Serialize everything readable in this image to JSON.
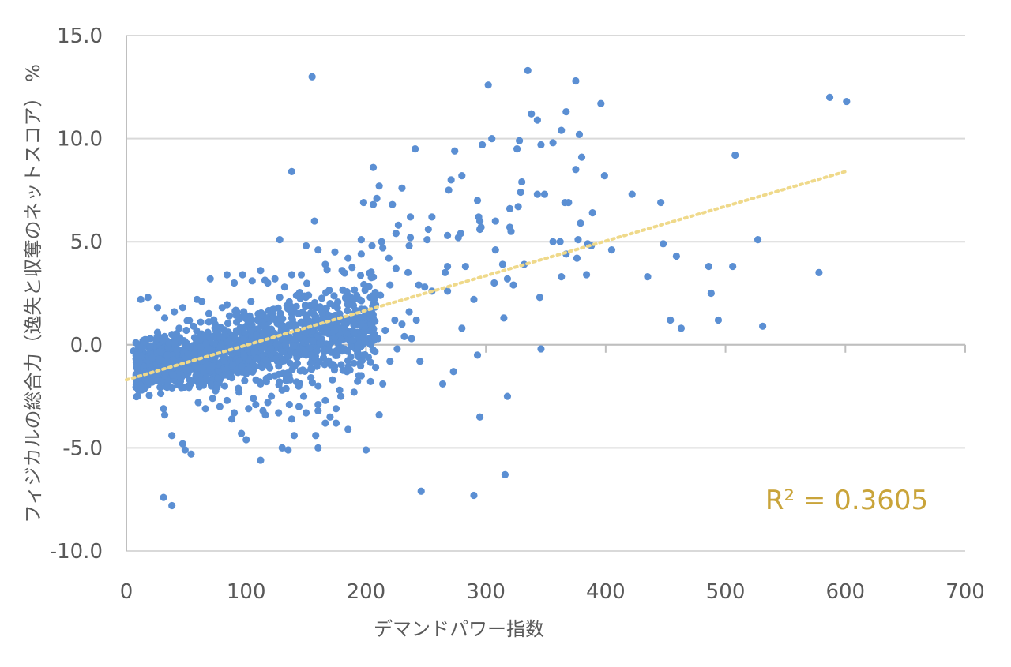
{
  "chart_data": {
    "type": "scatter",
    "xlabel": "デマンドパワー指数",
    "ylabel": "フィジカルの総合力（逸失と収奪のネットスコア） %",
    "xlim": [
      0,
      700
    ],
    "ylim": [
      -10,
      15
    ],
    "x_ticks": [
      "0",
      "100",
      "200",
      "300",
      "400",
      "500",
      "600",
      "700"
    ],
    "y_ticks": [
      "15.0",
      "10.0",
      "5.0",
      "0.0",
      "-5.0",
      "-10.0"
    ],
    "grid": "horizontal",
    "point_color": "#5B8FD3",
    "trendline": {
      "style": "dotted",
      "color": "#EFD98A",
      "x": [
        0,
        600
      ],
      "y": [
        -1.7,
        8.4
      ],
      "r2_label": "R² = 0.3605",
      "r2_color": "#C9A43A"
    },
    "series": [
      {
        "points": [
          [
            155,
            13.0
          ],
          [
            335,
            13.3
          ],
          [
            375,
            12.8
          ],
          [
            302,
            12.6
          ],
          [
            587,
            12.0
          ],
          [
            601,
            11.8
          ],
          [
            396,
            11.7
          ],
          [
            338,
            11.2
          ],
          [
            367,
            11.3
          ],
          [
            343,
            10.9
          ],
          [
            363,
            10.4
          ],
          [
            378,
            10.2
          ],
          [
            305,
            10.0
          ],
          [
            328,
            9.9
          ],
          [
            297,
            9.7
          ],
          [
            346,
            9.7
          ],
          [
            356,
            9.8
          ],
          [
            326,
            9.5
          ],
          [
            241,
            9.5
          ],
          [
            274,
            9.4
          ],
          [
            380,
            9.1
          ],
          [
            508,
            9.2
          ],
          [
            375,
            8.5
          ],
          [
            206,
            8.6
          ],
          [
            138,
            8.4
          ],
          [
            399,
            8.2
          ],
          [
            280,
            8.2
          ],
          [
            271,
            8.0
          ],
          [
            330,
            7.9
          ],
          [
            211,
            7.7
          ],
          [
            230,
            7.6
          ],
          [
            269,
            7.5
          ],
          [
            329,
            7.4
          ],
          [
            343,
            7.3
          ],
          [
            349,
            7.3
          ],
          [
            422,
            7.3
          ],
          [
            209,
            7.1
          ],
          [
            293,
            7.0
          ],
          [
            366,
            6.9
          ],
          [
            369,
            6.9
          ],
          [
            446,
            6.9
          ],
          [
            198,
            6.9
          ],
          [
            206,
            6.8
          ],
          [
            222,
            6.8
          ],
          [
            327,
            6.7
          ],
          [
            320,
            6.6
          ],
          [
            389,
            6.4
          ],
          [
            237,
            6.2
          ],
          [
            255,
            6.2
          ],
          [
            294,
            6.2
          ],
          [
            295,
            6.0
          ],
          [
            308,
            6.0
          ],
          [
            157,
            6.0
          ],
          [
            379,
            5.9
          ],
          [
            227,
            5.8
          ],
          [
            320,
            5.7
          ],
          [
            296,
            5.7
          ],
          [
            252,
            5.6
          ],
          [
            295,
            5.6
          ],
          [
            321,
            5.5
          ],
          [
            279,
            5.4
          ],
          [
            225,
            5.4
          ],
          [
            268,
            5.3
          ],
          [
            277,
            5.2
          ],
          [
            237,
            5.2
          ],
          [
            128,
            5.1
          ],
          [
            251,
            5.1
          ],
          [
            196,
            5.1
          ],
          [
            213,
            5.0
          ],
          [
            356,
            5.0
          ],
          [
            362,
            5.0
          ],
          [
            385,
            4.9
          ],
          [
            377,
            5.1
          ],
          [
            527,
            5.1
          ],
          [
            448,
            4.9
          ],
          [
            236,
            4.8
          ],
          [
            388,
            4.8
          ],
          [
            405,
            4.6
          ],
          [
            308,
            4.6
          ],
          [
            459,
            4.3
          ],
          [
            367,
            4.4
          ],
          [
            376,
            4.2
          ],
          [
            486,
            3.8
          ],
          [
            506,
            3.8
          ],
          [
            332,
            3.9
          ],
          [
            314,
            3.9
          ],
          [
            268,
            3.8
          ],
          [
            283,
            3.8
          ],
          [
            266,
            3.5
          ],
          [
            384,
            3.4
          ],
          [
            435,
            3.3
          ],
          [
            363,
            3.3
          ],
          [
            578,
            3.5
          ],
          [
            318,
            3.2
          ],
          [
            323,
            2.9
          ],
          [
            307,
            3.0
          ],
          [
            268,
            2.6
          ],
          [
            488,
            2.5
          ],
          [
            345,
            2.3
          ],
          [
            290,
            2.2
          ],
          [
            454,
            1.2
          ],
          [
            315,
            1.3
          ],
          [
            494,
            1.2
          ],
          [
            463,
            0.8
          ],
          [
            531,
            0.9
          ],
          [
            280,
            0.8
          ],
          [
            346,
            -0.2
          ],
          [
            293,
            -0.5
          ],
          [
            245,
            -0.8
          ],
          [
            273,
            -1.3
          ],
          [
            264,
            -1.9
          ],
          [
            318,
            -2.5
          ],
          [
            295,
            -3.5
          ],
          [
            211,
            -3.4
          ],
          [
            200,
            -5.1
          ],
          [
            160,
            -5.0
          ],
          [
            112,
            -5.6
          ],
          [
            130,
            -5.0
          ],
          [
            54,
            -5.3
          ],
          [
            38,
            -4.4
          ],
          [
            47,
            -4.8
          ],
          [
            49,
            -5.1
          ],
          [
            31,
            -3.1
          ],
          [
            32,
            -3.4
          ],
          [
            31,
            -7.4
          ],
          [
            38,
            -7.8
          ],
          [
            246,
            -7.1
          ],
          [
            290,
            -7.3
          ],
          [
            316,
            -6.3
          ],
          [
            185,
            -4.1
          ],
          [
            175,
            -3.8
          ],
          [
            166,
            -3.8
          ],
          [
            140,
            -4.4
          ],
          [
            158,
            -4.4
          ],
          [
            135,
            -5.1
          ],
          [
            96,
            -4.3
          ],
          [
            100,
            -4.6
          ],
          [
            88,
            -3.6
          ],
          [
            116,
            -3.4
          ],
          [
            127,
            -3.3
          ],
          [
            150,
            -3.3
          ],
          [
            160,
            -3.2
          ],
          [
            175,
            -3.1
          ],
          [
            179,
            -2.5
          ],
          [
            190,
            -2.3
          ],
          [
            12,
            2.2
          ],
          [
            18,
            2.3
          ],
          [
            26,
            1.8
          ],
          [
            32,
            1.3
          ],
          [
            40,
            1.6
          ],
          [
            47,
            1.8
          ],
          [
            59,
            2.2
          ],
          [
            63,
            2.1
          ],
          [
            70,
            3.2
          ],
          [
            84,
            3.4
          ],
          [
            90,
            3.0
          ],
          [
            97,
            3.4
          ],
          [
            105,
            3.1
          ],
          [
            112,
            3.6
          ],
          [
            118,
            3.0
          ],
          [
            124,
            3.2
          ],
          [
            132,
            2.8
          ],
          [
            138,
            3.4
          ],
          [
            146,
            3.4
          ],
          [
            150,
            4.8
          ],
          [
            160,
            4.6
          ],
          [
            166,
            3.9
          ],
          [
            174,
            4.5
          ],
          [
            180,
            3.6
          ],
          [
            185,
            4.2
          ],
          [
            196,
            4.4
          ],
          [
            205,
            4.8
          ],
          [
            214,
            4.7
          ],
          [
            219,
            4.2
          ],
          [
            225,
            3.7
          ],
          [
            235,
            3.5
          ],
          [
            244,
            2.9
          ],
          [
            249,
            2.8
          ],
          [
            255,
            2.6
          ],
          [
            220,
            2.9
          ],
          [
            212,
            2.4
          ],
          [
            206,
            2.0
          ],
          [
            199,
            1.4
          ],
          [
            192,
            1.0
          ],
          [
            186,
            1.2
          ],
          [
            178,
            1.5
          ],
          [
            170,
            2.0
          ],
          [
            164,
            1.3
          ],
          [
            158,
            1.8
          ],
          [
            152,
            2.4
          ],
          [
            146,
            1.1
          ],
          [
            140,
            1.6
          ],
          [
            134,
            1.9
          ],
          [
            128,
            2.3
          ],
          [
            122,
            1.7
          ],
          [
            116,
            1.2
          ],
          [
            110,
            1.5
          ],
          [
            104,
            2.1
          ],
          [
            98,
            1.6
          ],
          [
            92,
            1.1
          ],
          [
            86,
            1.4
          ],
          [
            80,
            1.8
          ],
          [
            74,
            1.0
          ],
          [
            68,
            0.6
          ],
          [
            62,
            1.1
          ],
          [
            56,
            0.9
          ],
          [
            50,
            0.7
          ],
          [
            44,
            0.8
          ],
          [
            38,
            0.5
          ],
          [
            32,
            0.4
          ],
          [
            26,
            0.6
          ],
          [
            20,
            0.3
          ],
          [
            14,
            0.2
          ],
          [
            8,
            0.1
          ],
          [
            10,
            -0.4
          ],
          [
            16,
            -0.6
          ],
          [
            22,
            -0.2
          ],
          [
            28,
            -0.8
          ],
          [
            34,
            -0.5
          ],
          [
            40,
            -1.0
          ],
          [
            46,
            -0.7
          ],
          [
            52,
            -1.3
          ],
          [
            58,
            -1.5
          ],
          [
            64,
            -0.9
          ],
          [
            70,
            -1.8
          ],
          [
            76,
            -1.2
          ],
          [
            82,
            -2.0
          ],
          [
            88,
            -1.6
          ],
          [
            94,
            -2.3
          ],
          [
            100,
            -1.4
          ],
          [
            106,
            -2.6
          ],
          [
            112,
            -1.9
          ],
          [
            118,
            -2.8
          ],
          [
            124,
            -1.5
          ],
          [
            130,
            -2.2
          ],
          [
            136,
            -2.9
          ],
          [
            142,
            -1.8
          ],
          [
            148,
            -2.5
          ],
          [
            154,
            -1.6
          ],
          [
            160,
            -2.0
          ],
          [
            166,
            -2.7
          ],
          [
            172,
            -1.7
          ],
          [
            178,
            -2.2
          ],
          [
            184,
            -1.3
          ],
          [
            190,
            -0.9
          ],
          [
            196,
            -1.5
          ],
          [
            202,
            -0.6
          ],
          [
            208,
            -1.1
          ],
          [
            214,
            -1.9
          ],
          [
            220,
            -0.8
          ],
          [
            226,
            -0.2
          ],
          [
            232,
            0.4
          ],
          [
            238,
            0.3
          ],
          [
            224,
            1.2
          ],
          [
            230,
            1.0
          ],
          [
            236,
            1.6
          ],
          [
            242,
            1.2
          ],
          [
            216,
            0.7
          ],
          [
            210,
            0.3
          ],
          [
            204,
            0.9
          ],
          [
            198,
            0.5
          ],
          [
            192,
            -0.1
          ],
          [
            186,
            0.4
          ],
          [
            180,
            -0.3
          ],
          [
            174,
            0.6
          ],
          [
            168,
            0.0
          ],
          [
            162,
            0.8
          ],
          [
            156,
            0.2
          ],
          [
            150,
            -0.5
          ],
          [
            144,
            0.5
          ],
          [
            138,
            -0.2
          ],
          [
            132,
            0.3
          ],
          [
            126,
            -0.8
          ],
          [
            120,
            0.1
          ],
          [
            114,
            -0.5
          ],
          [
            108,
            0.6
          ],
          [
            102,
            -0.3
          ],
          [
            96,
            0.3
          ],
          [
            90,
            -0.8
          ],
          [
            84,
            0.2
          ],
          [
            78,
            -0.4
          ],
          [
            72,
            0.4
          ],
          [
            66,
            -0.6
          ],
          [
            60,
            0.0
          ],
          [
            54,
            -0.3
          ],
          [
            48,
            0.2
          ],
          [
            42,
            -0.2
          ],
          [
            36,
            0.1
          ],
          [
            30,
            -0.1
          ],
          [
            24,
            0.0
          ],
          [
            18,
            -0.1
          ],
          [
            12,
            0.0
          ],
          [
            6,
            -0.3
          ],
          [
            60,
            -2.8
          ],
          [
            66,
            -3.1
          ],
          [
            72,
            -2.6
          ],
          [
            78,
            -3.0
          ],
          [
            84,
            -2.7
          ],
          [
            90,
            -3.3
          ],
          [
            102,
            -3.1
          ],
          [
            108,
            -2.9
          ],
          [
            114,
            -3.2
          ],
          [
            121,
            -2.5
          ],
          [
            138,
            -3.6
          ],
          [
            144,
            -3.0
          ],
          [
            160,
            -2.9
          ],
          [
            170,
            -3.5
          ]
        ]
      }
    ]
  }
}
